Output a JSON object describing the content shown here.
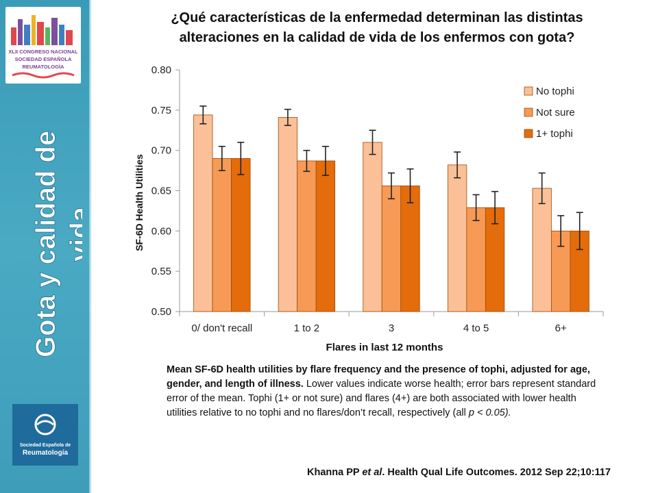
{
  "slide": {
    "title_line1": "¿Qué características de la enfermedad determinan las distintas",
    "title_line2": "alteraciones en la calidad de vida de los enfermos con gota?",
    "side_title_line1": "Gota  y calidad de",
    "side_title_line2": "vida",
    "caption_bold": "Mean SF-6D health utilities by flare frequency and the presence of tophi, adjusted for age, gender, and length of illness.",
    "caption_normal": " Lower values indicate worse health; error bars represent standard error of the mean. Tophi (1+ or not sure) and flares (4+) are both associated with lower health utilities relative to no tophi and no flares/don’t recall, respectively (all ",
    "caption_p": "p",
    "caption_end": " < 0.05).",
    "citation_a": "Khanna PP ",
    "citation_etal": "et al",
    "citation_b": ". Health Qual Life Outcomes. 2012 Sep 22;10:117",
    "ser_logo_line1": "Sociedad Española de",
    "ser_logo_line2": "Reumatología",
    "congress_logo": {
      "line1": "XLII CONGRESO NACIONAL",
      "line2": "SOCIEDAD ESPAÑOLA",
      "line3": "REUMATOLOGÍA"
    },
    "colors": {
      "sidebar": "#3a9bb7",
      "no_tophi": "#fbc097",
      "not_sure": "#f69a55",
      "one_plus_tophi": "#e46c0a"
    }
  },
  "chart_data": {
    "type": "bar",
    "categories": [
      "0/ don't recall",
      "1 to 2",
      "3",
      "4 to 5",
      "6+"
    ],
    "series": [
      {
        "name": "No tophi",
        "values": [
          0.744,
          0.741,
          0.71,
          0.682,
          0.653
        ],
        "errors": [
          0.011,
          0.01,
          0.015,
          0.016,
          0.019
        ],
        "color": "#fbc097"
      },
      {
        "name": "Not sure",
        "values": [
          0.69,
          0.687,
          0.656,
          0.629,
          0.6
        ],
        "errors": [
          0.015,
          0.013,
          0.016,
          0.016,
          0.019
        ],
        "color": "#f69a55"
      },
      {
        "name": "1+ tophi",
        "values": [
          0.69,
          0.687,
          0.656,
          0.629,
          0.6
        ],
        "errors": [
          0.02,
          0.018,
          0.021,
          0.02,
          0.023
        ],
        "color": "#e46c0a"
      }
    ],
    "xlabel": "Flares in last 12 months",
    "ylabel": "SF-6D Health Utilities",
    "ylim": [
      0.5,
      0.8
    ],
    "yticks": [
      "0.50",
      "0.55",
      "0.60",
      "0.65",
      "0.70",
      "0.75",
      "0.80"
    ],
    "legend_position": "top-right",
    "grid": false
  }
}
